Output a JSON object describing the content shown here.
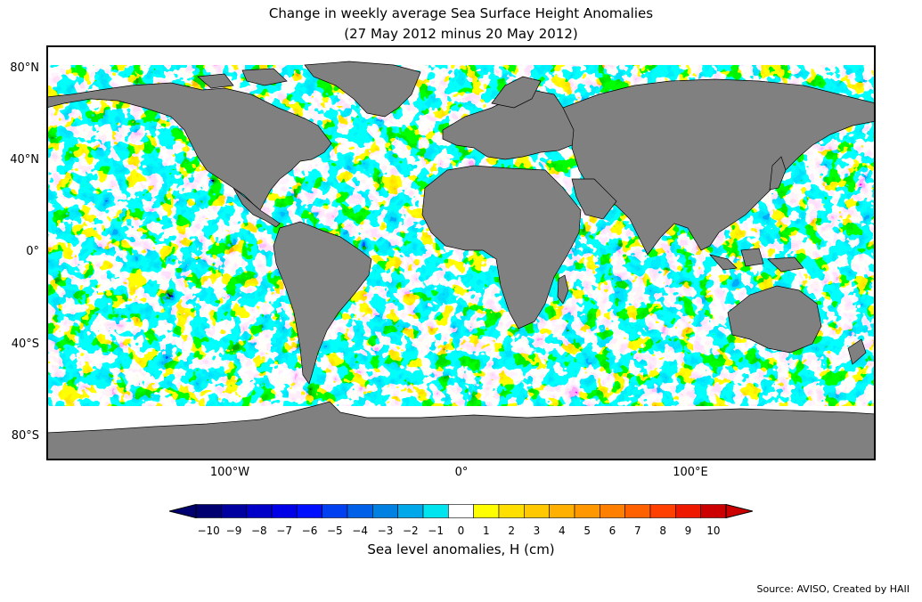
{
  "title": "Change in weekly average Sea Surface Height Anomalies",
  "subtitle": "(27 May 2012 minus 20 May 2012)",
  "lat_labels": [
    "80°N",
    "40°N",
    "0°",
    "40°S",
    "80°S"
  ],
  "lon_labels": [
    "100°W",
    "0°",
    "100°E"
  ],
  "colorbar": {
    "label": "Sea level anomalies, H (cm)",
    "ticks": [
      "−10",
      "−9",
      "−8",
      "−7",
      "−6",
      "−5",
      "−4",
      "−3",
      "−2",
      "−1",
      "0",
      "1",
      "2",
      "3",
      "4",
      "5",
      "6",
      "7",
      "8",
      "9",
      "10"
    ],
    "colors": [
      "#000070",
      "#0000a0",
      "#0000c8",
      "#0000e6",
      "#0010ff",
      "#0040f0",
      "#0060e8",
      "#0080e0",
      "#00a8ea",
      "#00e4ef",
      "#ffffff",
      "#ffff00",
      "#ffdf00",
      "#ffc800",
      "#ffb000",
      "#ff9800",
      "#ff7f00",
      "#ff6000",
      "#ff4000",
      "#ee1800",
      "#cc0000"
    ],
    "extend": "both"
  },
  "source": "Source: AVISO, Created by HAII",
  "colors": {
    "land": "#808080",
    "coast": "#000000",
    "frame": "#000000"
  }
}
